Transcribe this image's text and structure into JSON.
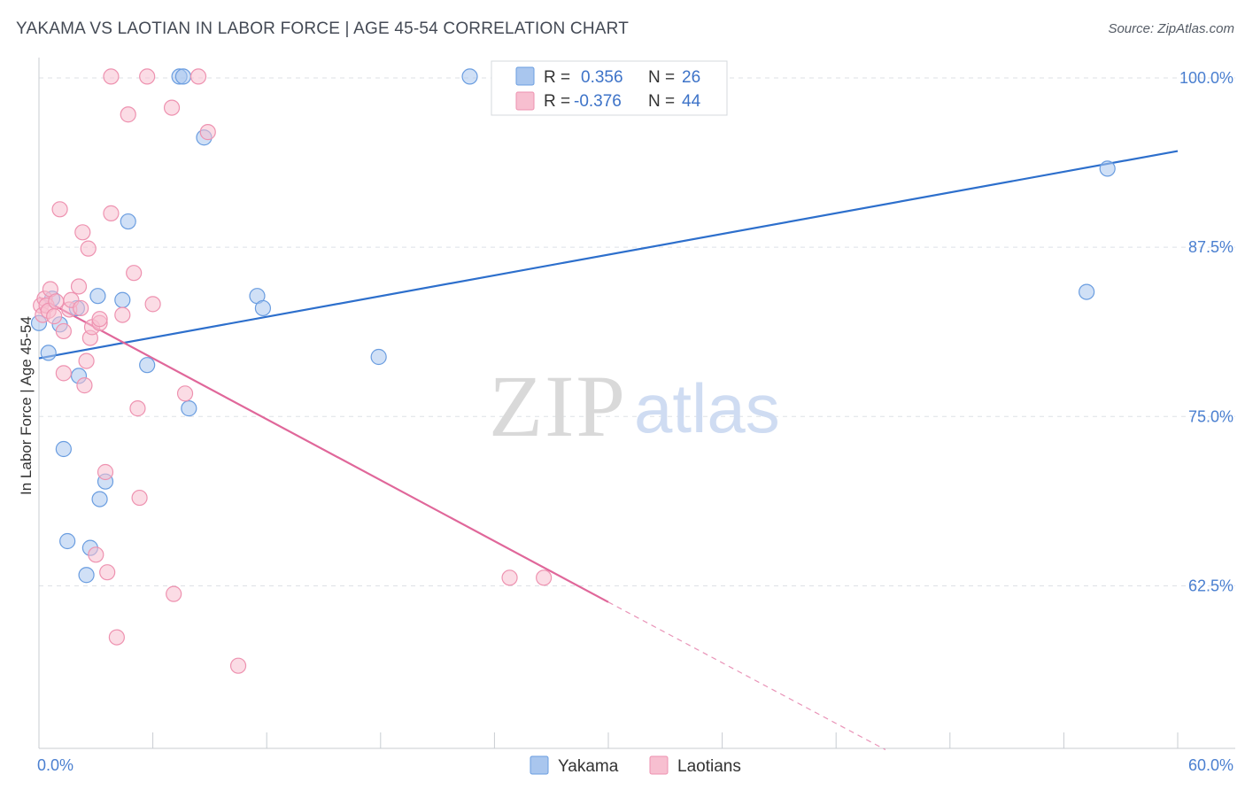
{
  "title": "YAKAMA VS LAOTIAN IN LABOR FORCE | AGE 45-54 CORRELATION CHART",
  "source": "Source: ZipAtlas.com",
  "watermark": {
    "zip": "ZIP",
    "atlas": "atlas"
  },
  "legend": {
    "r_label": "R =",
    "n_label": "N =",
    "rows": [
      {
        "series": "Yakama",
        "r": "0.356",
        "n": "26"
      },
      {
        "series": "Laotians",
        "r": "-0.376",
        "n": "44"
      }
    ]
  },
  "chart_data": {
    "type": "scatter",
    "title": "YAKAMA VS LAOTIAN IN LABOR FORCE | AGE 45-54 CORRELATION CHART",
    "xlabel": "",
    "ylabel": "In Labor Force | Age 45-54",
    "xlim": [
      0,
      60
    ],
    "ylim": [
      50.5,
      101.5
    ],
    "x_tick_labels": [
      {
        "value": 0,
        "label": "0.0%"
      },
      {
        "value": 60,
        "label": "60.0%"
      }
    ],
    "y_tick_labels": [
      {
        "value": 100,
        "label": "100.0%"
      },
      {
        "value": 87.5,
        "label": "87.5%"
      },
      {
        "value": 75,
        "label": "75.0%"
      },
      {
        "value": 62.5,
        "label": "62.5%"
      }
    ],
    "colors": {
      "Yakama": {
        "fill": "#a9c6ee",
        "stroke": "#6a9de0",
        "line": "#2d6fcc"
      },
      "Laotians": {
        "fill": "#f7bfd0",
        "stroke": "#ee92b0",
        "line": "#e0679a"
      }
    },
    "series": [
      {
        "name": "Yakama",
        "points": [
          [
            0.0,
            81.9
          ],
          [
            0.5,
            79.7
          ],
          [
            0.7,
            83.7
          ],
          [
            1.1,
            81.8
          ],
          [
            1.3,
            72.6
          ],
          [
            1.5,
            65.8
          ],
          [
            2.0,
            83.0
          ],
          [
            2.1,
            78.0
          ],
          [
            2.7,
            65.3
          ],
          [
            2.5,
            63.3
          ],
          [
            3.1,
            83.9
          ],
          [
            3.2,
            68.9
          ],
          [
            3.5,
            70.2
          ],
          [
            4.4,
            83.6
          ],
          [
            4.7,
            89.4
          ],
          [
            5.7,
            78.8
          ],
          [
            7.4,
            100.1
          ],
          [
            7.6,
            100.1
          ],
          [
            7.9,
            75.6
          ],
          [
            8.7,
            95.6
          ],
          [
            11.5,
            83.9
          ],
          [
            11.8,
            83.0
          ],
          [
            17.9,
            79.4
          ],
          [
            22.7,
            100.1
          ],
          [
            55.2,
            84.2
          ],
          [
            56.3,
            93.3
          ]
        ],
        "trend": {
          "x0": 0,
          "y0": 79.3,
          "x1": 60,
          "y1": 94.6
        }
      },
      {
        "name": "Laotians",
        "points": [
          [
            0.1,
            83.2
          ],
          [
            0.2,
            82.5
          ],
          [
            0.3,
            83.7
          ],
          [
            0.4,
            83.2
          ],
          [
            0.5,
            82.8
          ],
          [
            0.6,
            84.4
          ],
          [
            0.8,
            82.4
          ],
          [
            0.9,
            83.5
          ],
          [
            1.1,
            90.3
          ],
          [
            1.3,
            78.2
          ],
          [
            1.6,
            82.9
          ],
          [
            1.7,
            83.6
          ],
          [
            2.1,
            84.6
          ],
          [
            2.2,
            83.0
          ],
          [
            2.3,
            88.6
          ],
          [
            2.4,
            77.3
          ],
          [
            2.5,
            79.1
          ],
          [
            2.6,
            87.4
          ],
          [
            2.7,
            80.8
          ],
          [
            2.8,
            81.6
          ],
          [
            3.0,
            64.8
          ],
          [
            3.2,
            81.9
          ],
          [
            3.5,
            70.9
          ],
          [
            3.6,
            63.5
          ],
          [
            3.8,
            90.0
          ],
          [
            4.1,
            58.7
          ],
          [
            4.4,
            82.5
          ],
          [
            4.7,
            97.3
          ],
          [
            5.0,
            85.6
          ],
          [
            5.2,
            75.6
          ],
          [
            5.3,
            69.0
          ],
          [
            6.0,
            83.3
          ],
          [
            7.0,
            97.8
          ],
          [
            7.1,
            61.9
          ],
          [
            7.7,
            76.7
          ],
          [
            5.7,
            100.1
          ],
          [
            3.8,
            100.1
          ],
          [
            8.4,
            100.1
          ],
          [
            8.9,
            96.0
          ],
          [
            10.5,
            56.6
          ],
          [
            24.8,
            63.1
          ],
          [
            26.6,
            63.1
          ],
          [
            3.2,
            82.2
          ],
          [
            1.3,
            81.3
          ]
        ],
        "trend": {
          "x0": 0,
          "y0": 83.8,
          "x1": 30,
          "y1": 61.3
        },
        "trend_dashed": {
          "x0": 30,
          "y0": 61.3,
          "x1": 44.6,
          "y1": 50.4
        }
      }
    ]
  }
}
